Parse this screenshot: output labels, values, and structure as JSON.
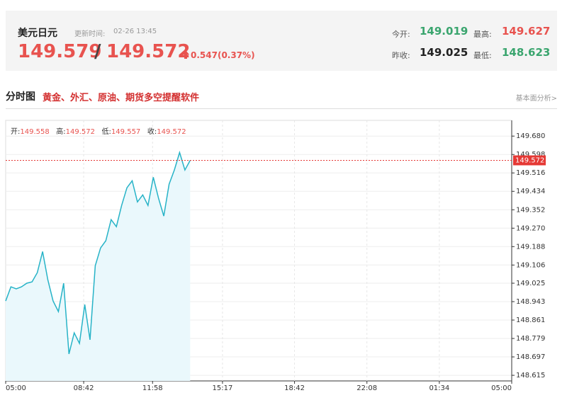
{
  "header": {
    "title": "美元日元",
    "update_label": "更新时间:",
    "update_time": "02-26 13:45",
    "price_bid": "149.579",
    "separator": "/",
    "price_ask": "149.572",
    "change": "0.547(0.37%)",
    "stats": [
      {
        "label": "今开:",
        "value": "149.019"
      },
      {
        "label": "最高:",
        "value": "149.627"
      },
      {
        "label": "昨收:",
        "value": "149.025"
      },
      {
        "label": "最低:",
        "value": "148.623"
      }
    ]
  },
  "section": {
    "title": "分时图",
    "promo": "黄金、外汇、原油、期货多空提醒软件",
    "link": "基本面分析>"
  },
  "chart_data": {
    "type": "line",
    "info": [
      {
        "label": "开:",
        "value": "149.558"
      },
      {
        "label": "高:",
        "value": "149.572"
      },
      {
        "label": "低:",
        "value": "149.557"
      },
      {
        "label": "收:",
        "value": "149.572"
      }
    ],
    "x": [
      "05:00",
      "05:15",
      "05:30",
      "05:45",
      "06:00",
      "06:15",
      "06:30",
      "06:45",
      "07:00",
      "07:15",
      "07:30",
      "07:45",
      "08:00",
      "08:15",
      "08:30",
      "08:45",
      "09:00",
      "09:15",
      "09:30",
      "09:45",
      "10:00",
      "10:15",
      "10:30",
      "10:45",
      "11:00",
      "11:15",
      "11:30",
      "11:45",
      "12:00",
      "12:15",
      "12:30",
      "12:45",
      "13:00",
      "13:15",
      "13:30",
      "13:45"
    ],
    "values": [
      148.946,
      149.009,
      149.0,
      149.009,
      149.025,
      149.031,
      149.072,
      149.166,
      149.04,
      148.946,
      148.899,
      149.025,
      148.71,
      148.804,
      148.757,
      148.93,
      148.773,
      149.103,
      149.182,
      149.214,
      149.308,
      149.277,
      149.371,
      149.45,
      149.481,
      149.387,
      149.418,
      149.371,
      149.497,
      149.403,
      149.324,
      149.466,
      149.529,
      149.607,
      149.529,
      149.572
    ],
    "color": "#27b3c7",
    "fill": "#eaf8fc",
    "xticks": [
      "05:00",
      "08:42",
      "11:58",
      "15:17",
      "18:42",
      "22:08",
      "01:34",
      "05:00"
    ],
    "ylim": [
      148.59,
      149.75
    ],
    "yticks": [
      {
        "value": 149.68,
        "label": "149.680"
      },
      149.598,
      149.516,
      149.434,
      149.352,
      {
        "value": 149.27,
        "label": "149.270"
      },
      149.188,
      149.106,
      149.025,
      148.943,
      148.861,
      148.779,
      148.697,
      148.615
    ],
    "grid": true,
    "current": 149.572,
    "current_color": "#e53935"
  }
}
